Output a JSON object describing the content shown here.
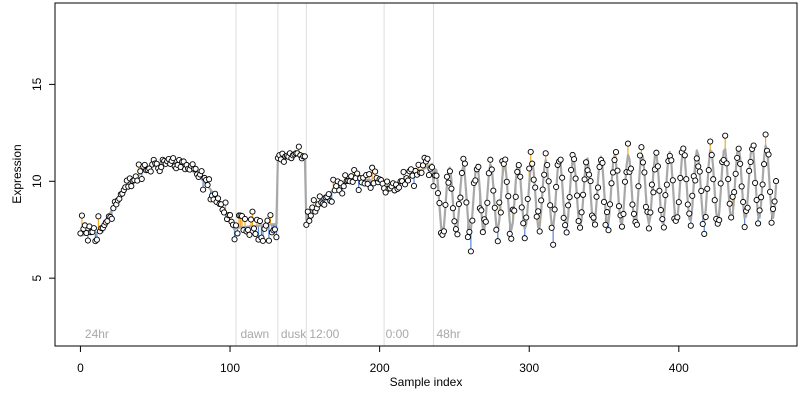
{
  "chart_data": {
    "type": "scatter",
    "title": "",
    "xlabel": "Sample index",
    "ylabel": "Expression",
    "xlim": [
      -17,
      479
    ],
    "ylim": [
      1.5,
      19.2
    ],
    "x_ticks": [
      0,
      100,
      200,
      300,
      400
    ],
    "y_ticks": [
      5,
      10,
      15
    ],
    "x_tick_labels": [
      "0",
      "100",
      "200",
      "300",
      "400"
    ],
    "y_tick_labels": [
      "5",
      "10",
      "15"
    ],
    "grid": false,
    "legend": "none",
    "vertical_lines": [
      104,
      132,
      151,
      203,
      236
    ],
    "period_labels": [
      {
        "x": 3,
        "text": "24hr"
      },
      {
        "x": 107,
        "text": "dawn"
      },
      {
        "x": 134,
        "text": "dusk"
      },
      {
        "x": 153,
        "text": "12:00"
      },
      {
        "x": 204,
        "text": "0:00"
      },
      {
        "x": 238,
        "text": "48hr"
      }
    ],
    "colors": {
      "fit": "#a8a8a8",
      "residual_positive": "#f5a623",
      "residual_negative": "#4f86e0",
      "point_stroke": "#000000",
      "point_fill": "#ffffff",
      "vline": "#dddddd",
      "frame": "#000000"
    },
    "segments": [
      {
        "start": 0,
        "end": 15,
        "shape": "lin",
        "a": 7.2,
        "b": 7.4,
        "noise": 0.75
      },
      {
        "start": 16,
        "end": 103,
        "shape": "arc",
        "a": 7.8,
        "b": 11.0,
        "c": 7.5,
        "noise": 0.3
      },
      {
        "start": 104,
        "end": 131,
        "shape": "lin",
        "a": 7.6,
        "b": 7.8,
        "noise": 0.45
      },
      {
        "start": 132,
        "end": 150,
        "shape": "lin",
        "a": 11.2,
        "b": 11.4,
        "noise": 0.2
      },
      {
        "start": 151,
        "end": 202,
        "shape": "arc",
        "a": 8.0,
        "b": 9.9,
        "c": 9.8,
        "noise": 0.35
      },
      {
        "start": 203,
        "end": 235,
        "shape": "lin",
        "a": 9.4,
        "b": 10.9,
        "noise": 0.3
      },
      {
        "start": 236,
        "end": 465,
        "shape": "osc",
        "a": 9.0,
        "b": 10.0,
        "amp_a": 1.7,
        "amp_b": 1.9,
        "period": 9.2,
        "noise": 0.5
      }
    ]
  },
  "period_text": {
    "p0": "24hr",
    "p1": "dawn",
    "p2": "dusk",
    "p3": "12:00",
    "p4": "0:00",
    "p5": "48hr"
  }
}
